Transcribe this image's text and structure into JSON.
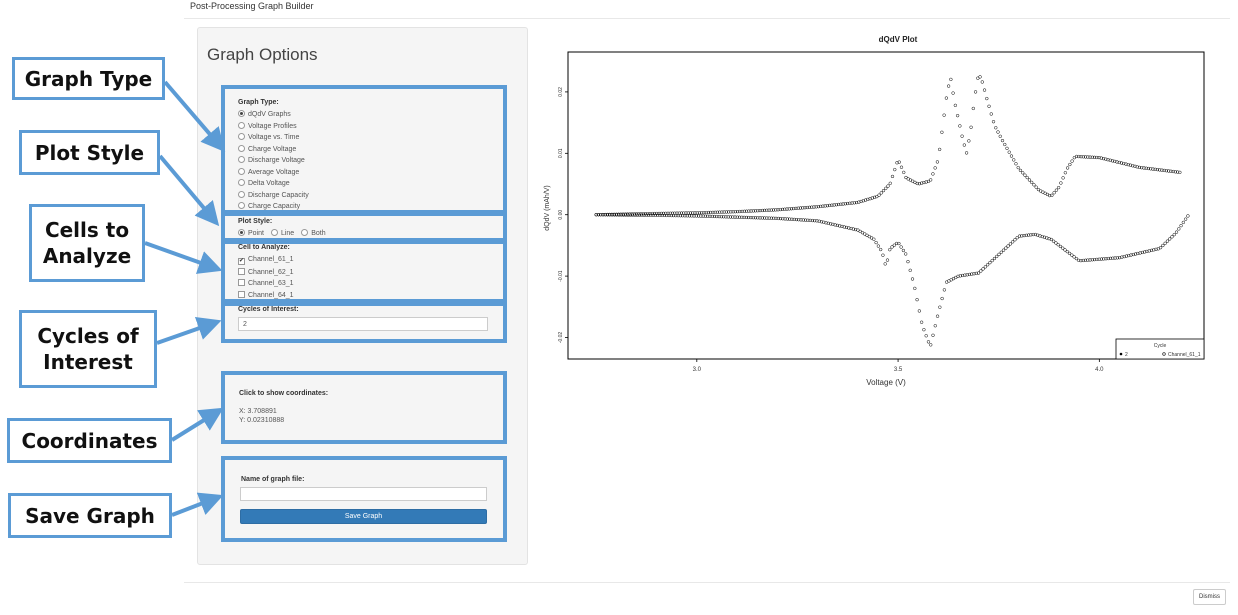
{
  "app": {
    "title": "Post-Processing Graph Builder",
    "dismiss_label": "Dismiss"
  },
  "sidebar": {
    "title": "Graph Options",
    "graph_type": {
      "label": "Graph Type:",
      "options": [
        "dQdV Graphs",
        "Voltage Profiles",
        "Voltage vs. Time",
        "Charge Voltage",
        "Discharge Voltage",
        "Average Voltage",
        "Delta Voltage",
        "Discharge Capacity",
        "Charge Capacity"
      ],
      "selected": "dQdV Graphs"
    },
    "plot_style": {
      "label": "Plot Style:",
      "options": [
        "Point",
        "Line",
        "Both"
      ],
      "selected": "Point"
    },
    "cells": {
      "label": "Cell to Analyze:",
      "options": [
        "Channel_61_1",
        "Channel_62_1",
        "Channel_63_1",
        "Channel_64_1"
      ],
      "checked": [
        "Channel_61_1"
      ],
      "check_mark": "✔"
    },
    "cycles": {
      "label": "Cycles of Interest:",
      "value": "2"
    },
    "coordinates": {
      "label": "Click to show coordinates:",
      "x_text": "X: 3.708891",
      "y_text": "Y: 0.02310888"
    },
    "save": {
      "label": "Name of graph file:",
      "value": "",
      "button_label": "Save Graph"
    }
  },
  "callouts": {
    "graph_type": "Graph Type",
    "plot_style": "Plot Style",
    "cells_line1": "Cells to",
    "cells_line2": "Analyze",
    "cycles_line1": "Cycles of",
    "cycles_line2": "Interest",
    "coordinates": "Coordinates",
    "save_graph": "Save Graph"
  },
  "colors": {
    "callout_blue": "#5b9bd5",
    "button_blue": "#337ab7",
    "panel_bg": "#f5f5f5"
  },
  "chart_data": {
    "type": "scatter",
    "title": "dQdV Plot",
    "xlabel": "Voltage (V)",
    "ylabel": "dQdV (mAh/V)",
    "xlim": [
      2.68,
      4.26
    ],
    "ylim": [
      -0.0235,
      0.0265
    ],
    "x_ticks": [
      3.0,
      3.5,
      4.0
    ],
    "x_tick_labels": [
      "3.0",
      "3.5",
      "4.0"
    ],
    "y_ticks": [
      -0.02,
      -0.01,
      0.0,
      0.01,
      0.02
    ],
    "y_tick_labels": [
      "-0.02",
      "-0.01",
      "0.00",
      "0.01",
      "0.02"
    ],
    "marker": "open-circle",
    "legend": {
      "title": "Cycle",
      "placement": "bottom-right",
      "entries": [
        "2",
        "Channel_61_1"
      ]
    },
    "series": [
      {
        "curve": "charge",
        "x": [
          2.75,
          2.9,
          3.0,
          3.1,
          3.2,
          3.3,
          3.4,
          3.45,
          3.48,
          3.5,
          3.51,
          3.52,
          3.55,
          3.58,
          3.6,
          3.61,
          3.62,
          3.63,
          3.64,
          3.66,
          3.67,
          3.68,
          3.69,
          3.7,
          3.71,
          3.72,
          3.74,
          3.76,
          3.8,
          3.85,
          3.88,
          3.9,
          3.92,
          3.94,
          4.0,
          4.1,
          4.2
        ],
        "y": [
          0.0,
          0.0002,
          0.0003,
          0.0005,
          0.0008,
          0.0013,
          0.002,
          0.003,
          0.005,
          0.009,
          0.0075,
          0.006,
          0.005,
          0.0055,
          0.009,
          0.014,
          0.019,
          0.0225,
          0.0185,
          0.0125,
          0.01,
          0.0135,
          0.019,
          0.023,
          0.0215,
          0.019,
          0.0145,
          0.012,
          0.0075,
          0.004,
          0.003,
          0.0045,
          0.0075,
          0.0095,
          0.0093,
          0.0077,
          0.0069
        ]
      },
      {
        "curve": "discharge",
        "x": [
          2.75,
          2.9,
          3.0,
          3.1,
          3.2,
          3.3,
          3.4,
          3.44,
          3.46,
          3.47,
          3.48,
          3.5,
          3.52,
          3.54,
          3.56,
          3.58,
          3.6,
          3.62,
          3.65,
          3.7,
          3.75,
          3.8,
          3.84,
          3.88,
          3.95,
          4.05,
          4.15,
          4.19,
          4.22
        ],
        "y": [
          0.0,
          -0.0001,
          -0.0002,
          -0.0004,
          -0.0006,
          -0.001,
          -0.0025,
          -0.004,
          -0.006,
          -0.0085,
          -0.0055,
          -0.0045,
          -0.0065,
          -0.0115,
          -0.018,
          -0.0215,
          -0.016,
          -0.011,
          -0.01,
          -0.0095,
          -0.0065,
          -0.0035,
          -0.0032,
          -0.004,
          -0.0075,
          -0.007,
          -0.0055,
          -0.003,
          -0.0002
        ]
      }
    ]
  }
}
